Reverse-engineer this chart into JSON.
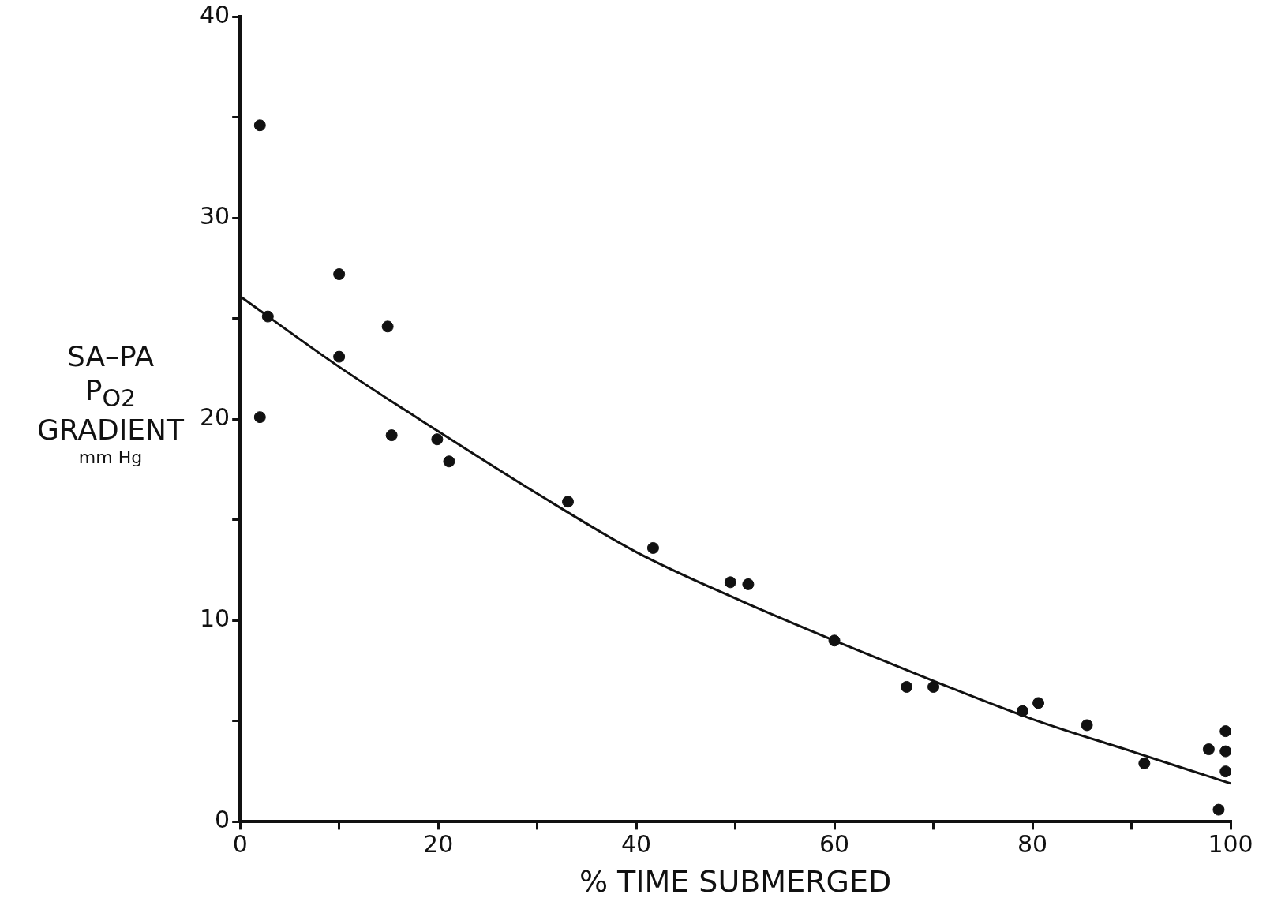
{
  "chart_data": {
    "type": "scatter",
    "xlabel": "% TIME SUBMERGED",
    "ylabel": "SA–PA\nP$_{O2}$\nGRADIENT\nmm Hg",
    "xlim": [
      0,
      100
    ],
    "ylim": [
      0,
      40
    ],
    "xticks": [
      0,
      {
        "value": 10,
        "label": null
      },
      20,
      {
        "value": 30,
        "label": null
      },
      40,
      {
        "value": 50,
        "label": null
      },
      60,
      {
        "value": 70,
        "label": null
      },
      80,
      {
        "value": 90,
        "label": null
      },
      100
    ],
    "yticks": [
      0,
      {
        "value": 5,
        "label": null
      },
      10,
      {
        "value": 15,
        "label": null
      },
      20,
      {
        "value": 25,
        "label": null
      },
      30,
      {
        "value": 35,
        "label": null
      },
      40
    ],
    "grid": false,
    "legend": false,
    "marker": "circle",
    "series": [
      {
        "color": "#111111",
        "x": [
          2.0,
          2.8,
          2.0,
          10.0,
          10.0,
          14.9,
          15.3,
          19.9,
          21.1,
          33.1,
          41.7,
          49.5,
          51.3,
          60.0,
          67.3,
          70.0,
          79.0,
          80.6,
          85.5,
          91.3,
          97.8,
          99.5,
          99.5,
          99.5,
          98.8
        ],
        "values": [
          34.6,
          25.1,
          20.1,
          27.2,
          23.1,
          24.6,
          19.2,
          19.0,
          17.9,
          15.9,
          13.6,
          11.9,
          11.8,
          9.0,
          6.7,
          6.7,
          5.5,
          5.9,
          4.8,
          2.9,
          3.6,
          4.5,
          3.5,
          2.5,
          0.6
        ]
      },
      {
        "type": "line",
        "color": "#111111",
        "marker": "none",
        "line_style": "solid",
        "x": [
          0,
          10,
          20,
          30,
          40,
          50,
          60,
          70,
          80,
          90,
          100
        ],
        "values": [
          26.1,
          22.6,
          19.4,
          16.3,
          13.4,
          11.1,
          9.0,
          7.0,
          5.1,
          3.5,
          1.9
        ]
      }
    ]
  }
}
